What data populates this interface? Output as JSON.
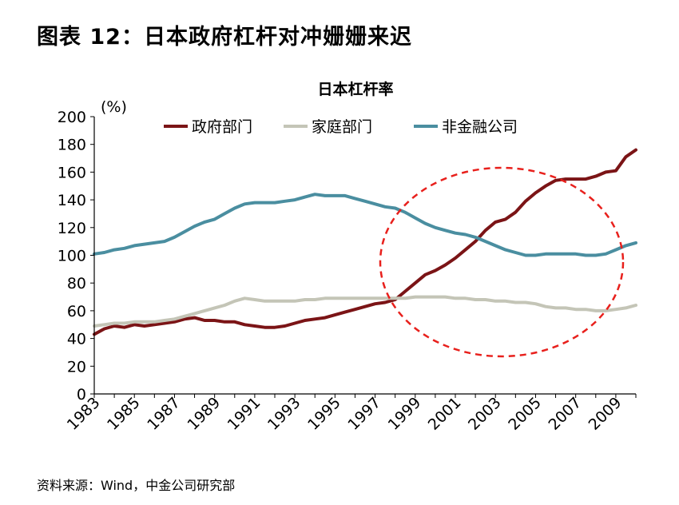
{
  "figure": {
    "title": "图表 12：日本政府杠杆对冲姗姗来迟",
    "source": "资料来源：Wind，中金公司研究部"
  },
  "colors": {
    "government": "#7b1416",
    "household": "#c4c5b7",
    "nonfinancial": "#4a8ea0",
    "annotation": "#e8201c",
    "axis": "#000000"
  },
  "chart_data": {
    "type": "line",
    "title": "日本杠杆率",
    "ylabel": "(%)",
    "xlabel": "",
    "ylim": [
      0,
      200
    ],
    "yticks": [
      0,
      20,
      40,
      60,
      80,
      100,
      120,
      140,
      160,
      180,
      200
    ],
    "xlim": [
      1983,
      2010
    ],
    "xticks": [
      "1983",
      "1985",
      "1987",
      "1989",
      "1991",
      "1993",
      "1995",
      "1997",
      "1999",
      "2001",
      "2003",
      "2005",
      "2007",
      "2009"
    ],
    "legend_position": "top",
    "grid": false,
    "series": [
      {
        "name": "政府部门",
        "color_key": "government",
        "x": [
          1983,
          1983.5,
          1984,
          1984.5,
          1985,
          1985.5,
          1986,
          1986.5,
          1987,
          1987.5,
          1988,
          1988.5,
          1989,
          1989.5,
          1990,
          1990.5,
          1991,
          1991.5,
          1992,
          1992.5,
          1993,
          1993.5,
          1994,
          1994.5,
          1995,
          1995.5,
          1996,
          1996.5,
          1997,
          1997.5,
          1998,
          1998.5,
          1999,
          1999.5,
          2000,
          2000.5,
          2001,
          2001.5,
          2002,
          2002.5,
          2003,
          2003.5,
          2004,
          2004.5,
          2005,
          2005.5,
          2006,
          2006.5,
          2007,
          2007.5,
          2008,
          2008.5,
          2009,
          2009.5,
          2010
        ],
        "values": [
          43,
          47,
          49,
          48,
          50,
          49,
          50,
          51,
          52,
          54,
          55,
          53,
          53,
          52,
          52,
          50,
          49,
          48,
          48,
          49,
          51,
          53,
          54,
          55,
          57,
          59,
          61,
          63,
          65,
          66,
          68,
          74,
          80,
          86,
          89,
          93,
          98,
          104,
          110,
          118,
          124,
          126,
          131,
          139,
          145,
          150,
          154,
          155,
          155,
          155,
          157,
          160,
          161,
          171,
          176
        ]
      },
      {
        "name": "家庭部门",
        "color_key": "household",
        "x": [
          1983,
          1983.5,
          1984,
          1984.5,
          1985,
          1985.5,
          1986,
          1986.5,
          1987,
          1987.5,
          1988,
          1988.5,
          1989,
          1989.5,
          1990,
          1990.5,
          1991,
          1991.5,
          1992,
          1992.5,
          1993,
          1993.5,
          1994,
          1994.5,
          1995,
          1995.5,
          1996,
          1996.5,
          1997,
          1997.5,
          1998,
          1998.5,
          1999,
          1999.5,
          2000,
          2000.5,
          2001,
          2001.5,
          2002,
          2002.5,
          2003,
          2003.5,
          2004,
          2004.5,
          2005,
          2005.5,
          2006,
          2006.5,
          2007,
          2007.5,
          2008,
          2008.5,
          2009,
          2009.5,
          2010
        ],
        "values": [
          49,
          50,
          51,
          51,
          52,
          52,
          52,
          53,
          54,
          56,
          58,
          60,
          62,
          64,
          67,
          69,
          68,
          67,
          67,
          67,
          67,
          68,
          68,
          69,
          69,
          69,
          69,
          69,
          69,
          69,
          69,
          69,
          70,
          70,
          70,
          70,
          69,
          69,
          68,
          68,
          67,
          67,
          66,
          66,
          65,
          63,
          62,
          62,
          61,
          61,
          60,
          60,
          61,
          62,
          64
        ]
      },
      {
        "name": "非金融公司",
        "color_key": "nonfinancial",
        "x": [
          1983,
          1983.5,
          1984,
          1984.5,
          1985,
          1985.5,
          1986,
          1986.5,
          1987,
          1987.5,
          1988,
          1988.5,
          1989,
          1989.5,
          1990,
          1990.5,
          1991,
          1991.5,
          1992,
          1992.5,
          1993,
          1993.5,
          1994,
          1994.5,
          1995,
          1995.5,
          1996,
          1996.5,
          1997,
          1997.5,
          1998,
          1998.5,
          1999,
          1999.5,
          2000,
          2000.5,
          2001,
          2001.5,
          2002,
          2002.5,
          2003,
          2003.5,
          2004,
          2004.5,
          2005,
          2005.5,
          2006,
          2006.5,
          2007,
          2007.5,
          2008,
          2008.5,
          2009,
          2009.5,
          2010
        ],
        "values": [
          101,
          102,
          104,
          105,
          107,
          108,
          109,
          110,
          113,
          117,
          121,
          124,
          126,
          130,
          134,
          137,
          138,
          138,
          138,
          139,
          140,
          142,
          144,
          143,
          143,
          143,
          141,
          139,
          137,
          135,
          134,
          131,
          127,
          123,
          120,
          118,
          116,
          115,
          113,
          110,
          107,
          104,
          102,
          100,
          100,
          101,
          101,
          101,
          101,
          100,
          100,
          101,
          104,
          107,
          109
        ]
      }
    ]
  }
}
